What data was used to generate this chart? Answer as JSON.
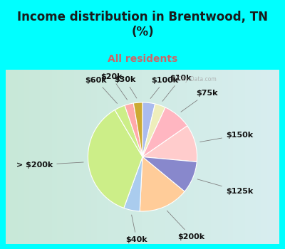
{
  "title": "Income distribution in Brentwood, TN\n(%)",
  "subtitle": "All residents",
  "title_color": "#1a1a1a",
  "subtitle_color": "#cc6666",
  "background_color": "#00ffff",
  "chart_bg_color": "#e0f0e8",
  "wedge_lw": 0.8,
  "label_fontsize": 8,
  "label_color": "#111111",
  "figsize": [
    4.0,
    3.5
  ],
  "dpi": 100,
  "reordered_labels": [
    "$100k",
    "$10k",
    "$75k",
    "$150k",
    "$125k",
    "$200k",
    "$40k",
    "> $200k",
    "$60k",
    "$20k",
    "$30k"
  ],
  "reordered_values": [
    3.5,
    3.0,
    8.0,
    10.5,
    9.0,
    14.0,
    4.5,
    34.0,
    3.0,
    2.5,
    2.5
  ],
  "reordered_colors": [
    "#aabbee",
    "#eeeebb",
    "#ffb6c1",
    "#ffcccc",
    "#8888cc",
    "#ffcc99",
    "#aaccee",
    "#ccee88",
    "#ccee88",
    "#ffaaaa",
    "#ccaa33"
  ]
}
